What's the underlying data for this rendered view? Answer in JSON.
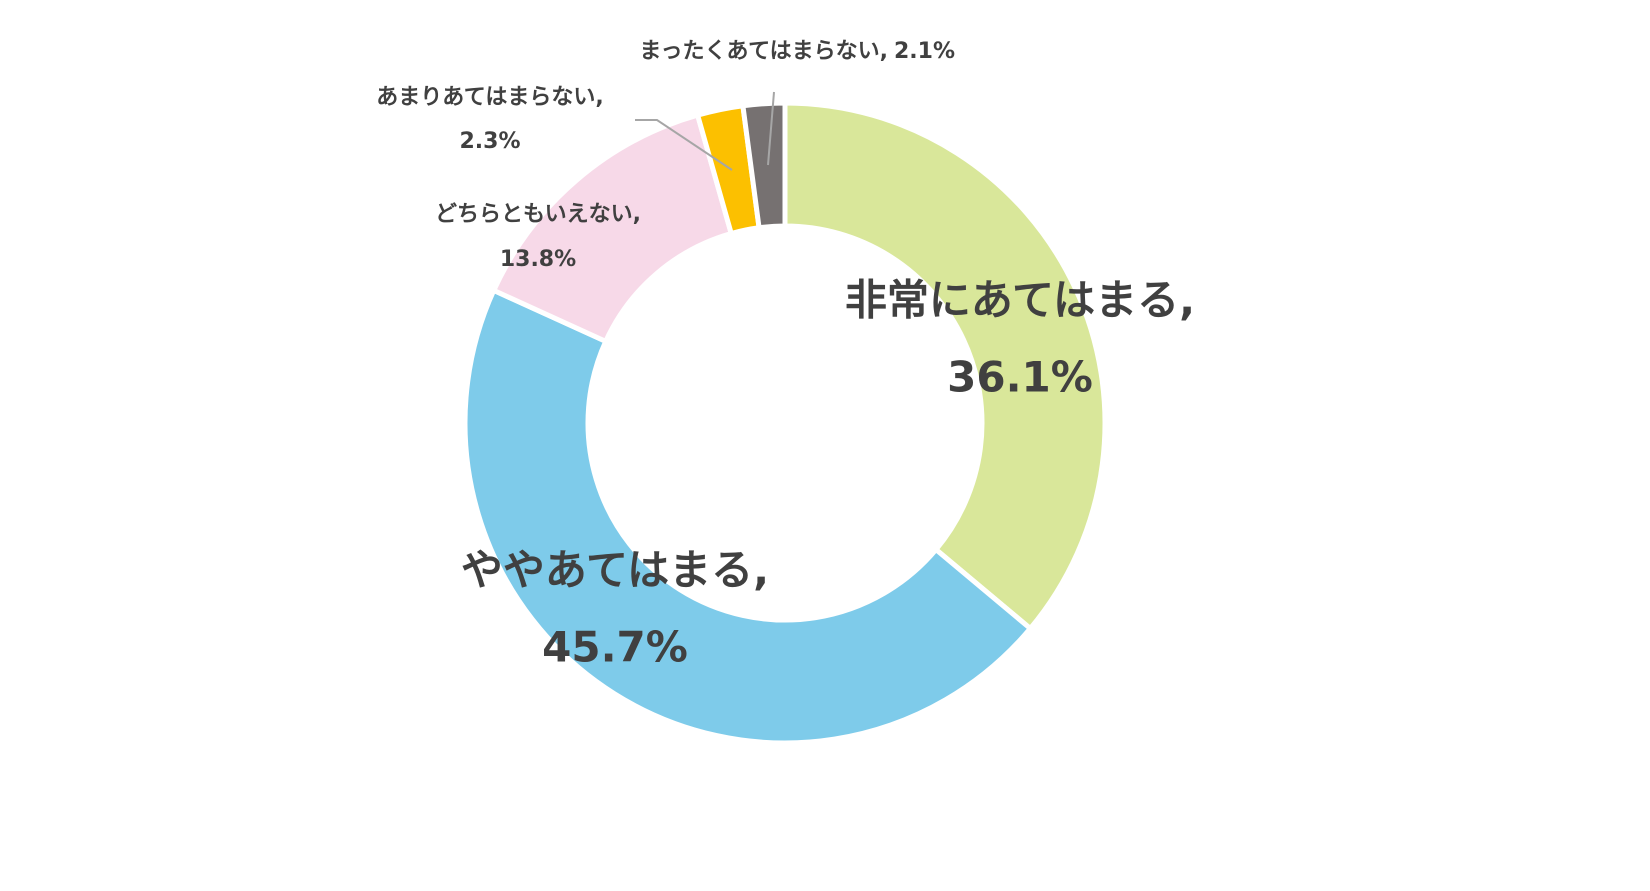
{
  "chart_data": {
    "type": "donut",
    "categories": [
      "非常にあてはまる,",
      "ややあてはまる,",
      "どちらともいえない,",
      "あまりあてはまらない,",
      "まったくあてはまらない,"
    ],
    "values": [
      36.1,
      45.7,
      13.8,
      2.3,
      2.1
    ],
    "value_labels": [
      "36.1%",
      "45.7%",
      "13.8%",
      "2.3%",
      "2.1%"
    ],
    "colors": [
      "#d9e79a",
      "#7ecbea",
      "#f7d9e8",
      "#fcc000",
      "#767171"
    ]
  }
}
